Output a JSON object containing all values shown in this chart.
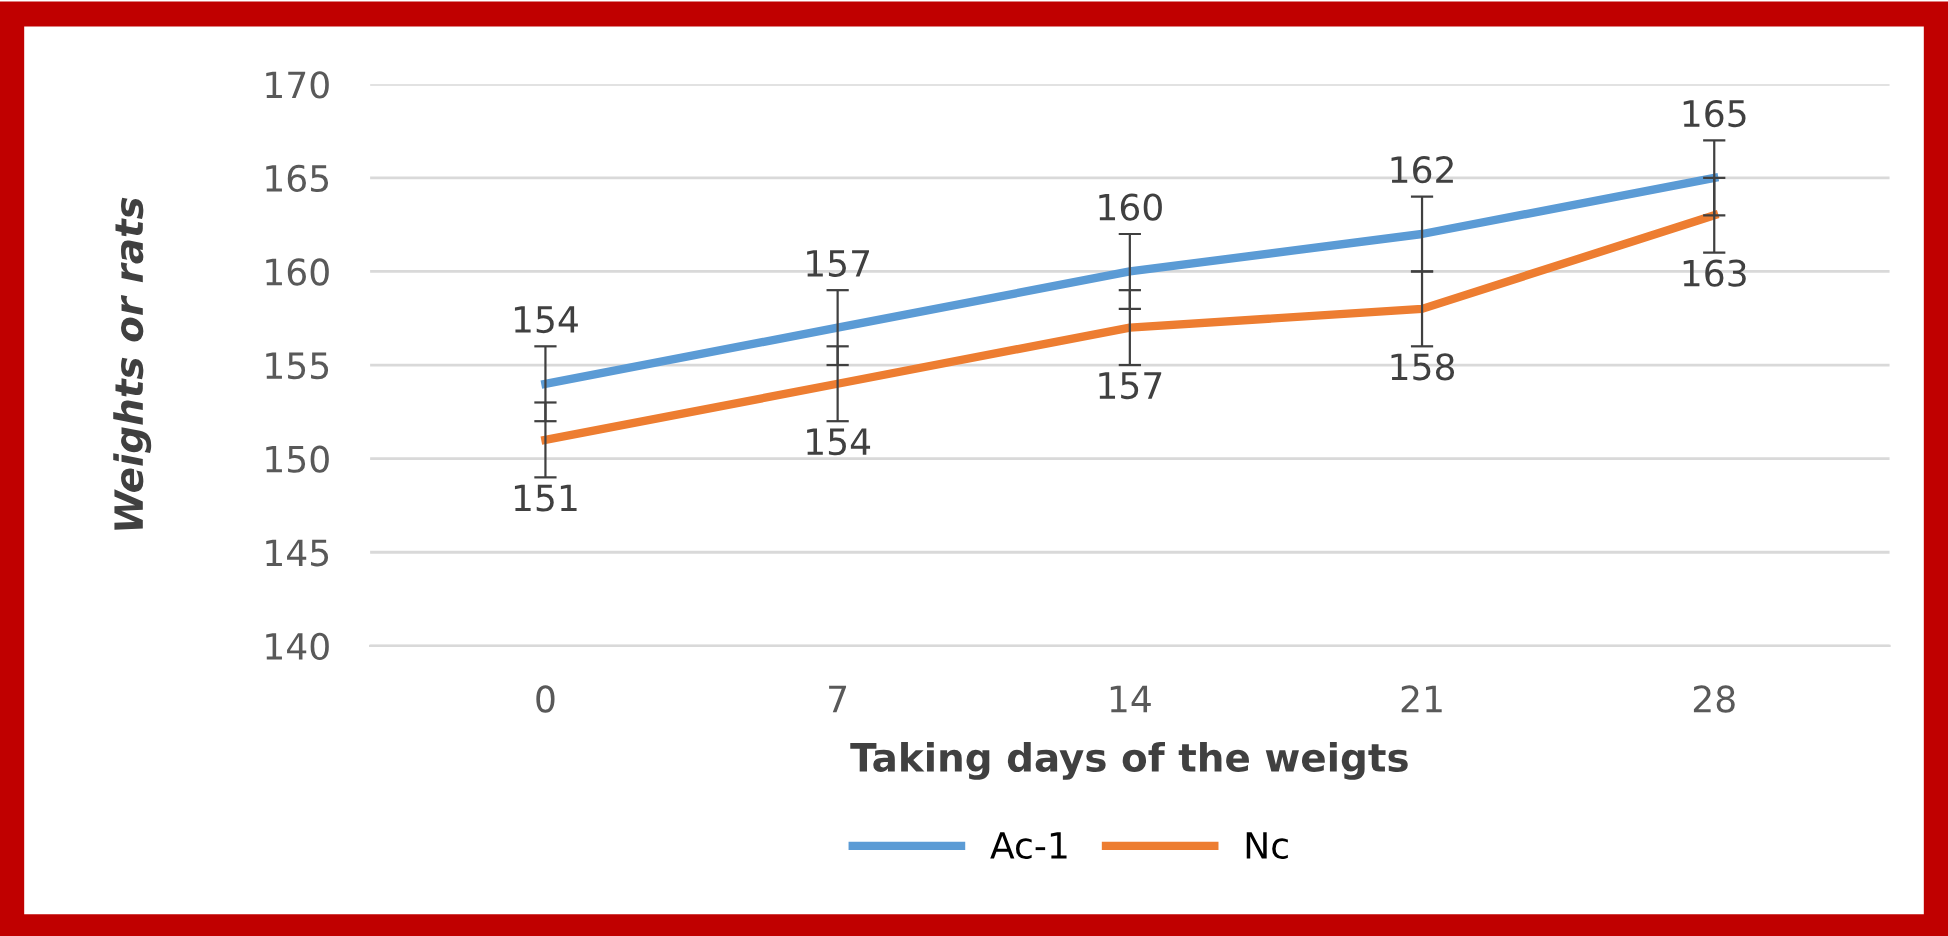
{
  "chart_data": {
    "type": "line",
    "xlabel": "Taking days of the weigts",
    "ylabel": "Weights or rats",
    "categories": [
      "0",
      "7",
      "14",
      "21",
      "28"
    ],
    "series": [
      {
        "name": "Ac-1",
        "color": "#5b9bd5",
        "values": [
          154,
          157,
          160,
          162,
          165
        ],
        "errors": [
          2,
          2,
          2,
          2,
          2
        ]
      },
      {
        "name": "Nc",
        "color": "#ed7d31",
        "values": [
          151,
          154,
          157,
          158,
          163
        ],
        "errors": [
          2,
          2,
          2,
          2,
          2
        ]
      }
    ],
    "ylim": [
      140,
      170
    ],
    "yticks": [
      140,
      145,
      150,
      155,
      160,
      165,
      170
    ],
    "grid": "y",
    "legend": "bottom",
    "data_labels": true,
    "marker": "none",
    "line_style": "solid"
  }
}
